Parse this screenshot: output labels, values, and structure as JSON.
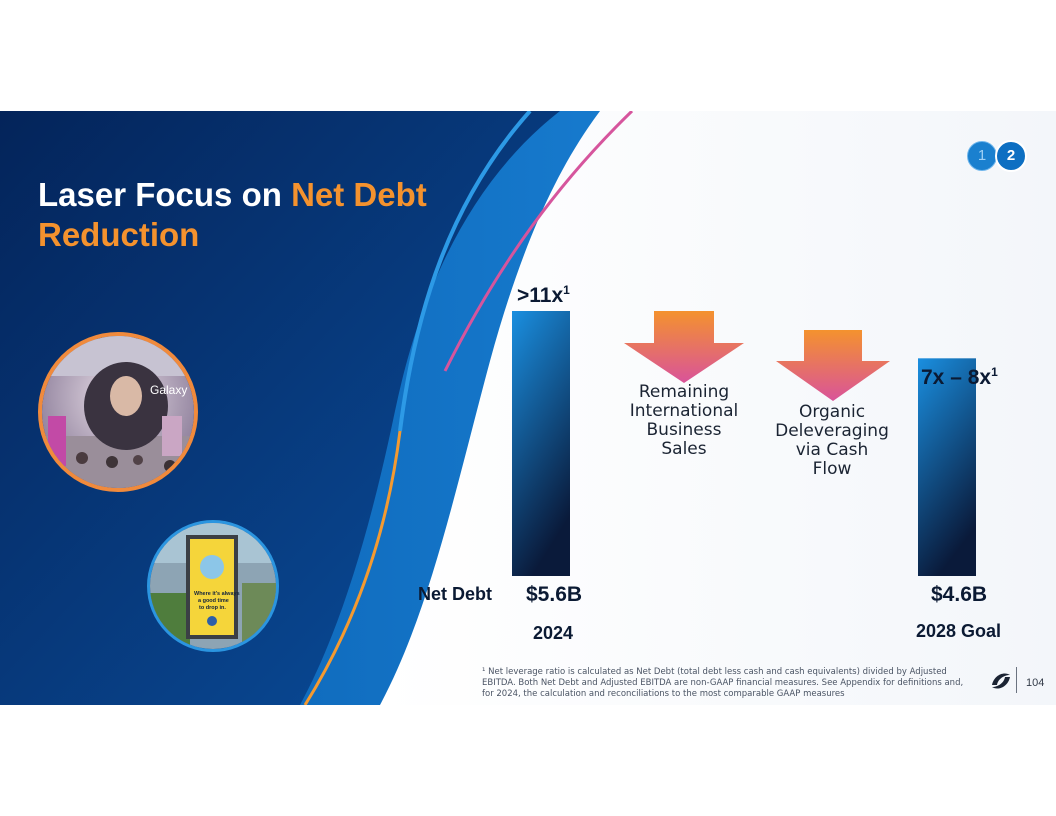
{
  "title": {
    "part1": "Laser Focus on ",
    "part2": "Net Debt Reduction"
  },
  "pager": {
    "page1": "1",
    "page2": "2",
    "active": "2"
  },
  "chart_data": {
    "type": "bar",
    "categories": [
      "2024",
      "2028 Goal"
    ],
    "series": [
      {
        "values": [
          5.6,
          4.6
        ]
      }
    ],
    "row_label": "Net Debt",
    "value_labels": [
      "$5.6B",
      "$4.6B"
    ],
    "leverage_labels": [
      ">11x",
      "7x – 8x"
    ],
    "leverage_footnote_marker": "1",
    "steps": [
      "Remaining International Business Sales",
      "Organic Deleveraging via Cash Flow"
    ],
    "ylim": [
      0,
      5.6
    ]
  },
  "step1": {
    "line1": "Remaining",
    "line2": "International",
    "line3": "Business Sales"
  },
  "step2": {
    "line1": "Organic",
    "line2": "Deleveraging",
    "line3": "via Cash",
    "line4": "Flow"
  },
  "photos": {
    "photo1_text": "Galaxy",
    "photo2_line1": "Where it's always",
    "photo2_line2": "a good time",
    "photo2_line3": "to drop in."
  },
  "footnote": "¹ Net leverage ratio is calculated as Net Debt (total debt less cash and cash equivalents) divided by Adjusted EBITDA. Both Net Debt and Adjusted EBITDA are non-GAAP financial measures. See Appendix for definitions and, for 2024, the calculation and reconciliations to the most comparable GAAP measures",
  "page_number": "104",
  "colors": {
    "accent": "#f4922e",
    "bar_top": "#1a8fe0",
    "bar_bottom": "#0a1a3a",
    "arrow_top": "#f4922e",
    "arrow_bottom": "#d9539a"
  }
}
